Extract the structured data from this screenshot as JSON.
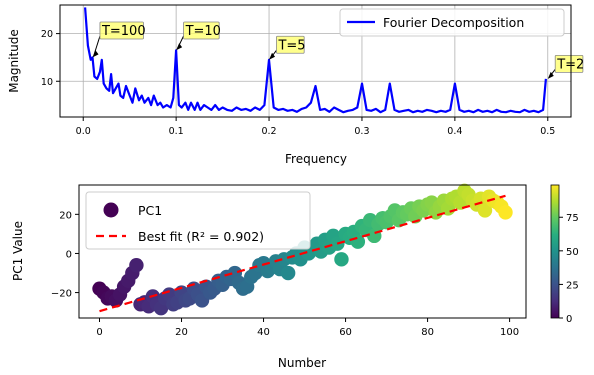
{
  "chart_data": [
    {
      "type": "line",
      "xlabel": "Frequency",
      "ylabel": "Magnitude",
      "xlim": [
        -0.025,
        0.525
      ],
      "ylim": [
        2.5,
        26
      ],
      "xticks": [
        0.0,
        0.1,
        0.2,
        0.3,
        0.4,
        0.5
      ],
      "xtick_labels": [
        "0.0",
        "0.1",
        "0.2",
        "0.3",
        "0.4",
        "0.5"
      ],
      "yticks": [
        10,
        20
      ],
      "ytick_labels": [
        "10",
        "20"
      ],
      "grid": true,
      "legend": "top-right",
      "series": [
        {
          "name": "Fourier Decomposition",
          "color": "#0000ff",
          "x": [
            0.002,
            0.005,
            0.008,
            0.01,
            0.012,
            0.015,
            0.018,
            0.02,
            0.022,
            0.025,
            0.028,
            0.03,
            0.032,
            0.035,
            0.038,
            0.04,
            0.043,
            0.046,
            0.05,
            0.053,
            0.056,
            0.06,
            0.063,
            0.066,
            0.07,
            0.073,
            0.076,
            0.08,
            0.083,
            0.086,
            0.09,
            0.094,
            0.097,
            0.1,
            0.103,
            0.106,
            0.11,
            0.113,
            0.116,
            0.12,
            0.123,
            0.126,
            0.13,
            0.134,
            0.138,
            0.142,
            0.146,
            0.15,
            0.155,
            0.16,
            0.165,
            0.17,
            0.175,
            0.18,
            0.185,
            0.19,
            0.195,
            0.2,
            0.205,
            0.21,
            0.215,
            0.22,
            0.225,
            0.23,
            0.235,
            0.24,
            0.245,
            0.25,
            0.255,
            0.26,
            0.265,
            0.27,
            0.275,
            0.28,
            0.285,
            0.29,
            0.295,
            0.3,
            0.305,
            0.31,
            0.315,
            0.32,
            0.325,
            0.33,
            0.335,
            0.34,
            0.345,
            0.35,
            0.355,
            0.36,
            0.365,
            0.37,
            0.375,
            0.38,
            0.385,
            0.39,
            0.395,
            0.4,
            0.405,
            0.41,
            0.415,
            0.42,
            0.425,
            0.43,
            0.435,
            0.44,
            0.445,
            0.45,
            0.455,
            0.46,
            0.465,
            0.47,
            0.475,
            0.48,
            0.485,
            0.49,
            0.495,
            0.498
          ],
          "values": [
            25.5,
            17.5,
            14.5,
            15.0,
            11.0,
            10.5,
            12.0,
            14.5,
            9.5,
            8.5,
            8.0,
            11.5,
            7.5,
            8.5,
            9.5,
            7.0,
            6.5,
            9.0,
            7.0,
            5.5,
            8.5,
            6.0,
            7.0,
            5.5,
            6.5,
            5.0,
            7.0,
            5.0,
            5.5,
            4.5,
            5.0,
            4.5,
            6.5,
            16.5,
            5.0,
            4.5,
            5.5,
            4.0,
            5.5,
            4.0,
            5.5,
            4.0,
            5.0,
            4.5,
            4.0,
            5.0,
            4.0,
            4.5,
            4.0,
            3.8,
            4.5,
            4.0,
            4.2,
            3.8,
            4.5,
            4.0,
            5.0,
            14.5,
            4.5,
            4.0,
            4.2,
            3.8,
            4.0,
            3.6,
            4.2,
            4.5,
            5.5,
            9.0,
            4.0,
            4.2,
            3.6,
            4.5,
            4.0,
            3.5,
            3.8,
            4.0,
            4.5,
            9.5,
            4.0,
            3.8,
            4.2,
            3.5,
            4.0,
            9.5,
            4.0,
            3.6,
            3.8,
            4.0,
            3.5,
            3.8,
            3.6,
            4.0,
            3.8,
            3.5,
            3.8,
            3.6,
            4.0,
            9.5,
            4.0,
            3.6,
            3.8,
            3.5,
            4.0,
            3.6,
            3.8,
            3.5,
            4.0,
            3.6,
            3.5,
            3.8,
            3.6,
            3.5,
            4.0,
            3.6,
            3.8,
            3.5,
            4.0,
            10.5
          ]
        }
      ],
      "annotations": [
        {
          "text": "T=100",
          "x": 0.01,
          "y": 15.0,
          "text_x": 0.018,
          "text_y": 19.5
        },
        {
          "text": "T=10",
          "x": 0.1,
          "y": 16.5,
          "text_x": 0.108,
          "text_y": 19.5
        },
        {
          "text": "T=5",
          "x": 0.2,
          "y": 14.5,
          "text_x": 0.208,
          "text_y": 16.5
        },
        {
          "text": "T=2",
          "x": 0.5,
          "y": 10.5,
          "text_x": 0.508,
          "text_y": 12.5
        }
      ]
    },
    {
      "type": "scatter",
      "xlabel": "Number",
      "ylabel": "PC1 Value",
      "xlim": [
        -5,
        104
      ],
      "ylim": [
        -33,
        35
      ],
      "xticks": [
        0,
        20,
        40,
        60,
        80,
        100
      ],
      "xtick_labels": [
        "0",
        "20",
        "40",
        "60",
        "80",
        "100"
      ],
      "yticks": [
        -20,
        0,
        20
      ],
      "ytick_labels": [
        "−20",
        "0",
        "20"
      ],
      "grid": false,
      "legend": "top-left",
      "colorbar": {
        "colormap": "viridis",
        "range": [
          0,
          99
        ],
        "ticks": [
          0,
          25,
          50,
          75
        ],
        "tick_labels": [
          "0",
          "25",
          "50",
          "75"
        ]
      },
      "series": [
        {
          "name": "PC1",
          "x": [
            0,
            1,
            2,
            3,
            4,
            5,
            6,
            7,
            8,
            9,
            10,
            11,
            12,
            13,
            14,
            15,
            16,
            17,
            18,
            19,
            20,
            21,
            22,
            23,
            24,
            25,
            26,
            27,
            28,
            29,
            30,
            31,
            32,
            33,
            34,
            35,
            36,
            37,
            38,
            39,
            40,
            41,
            42,
            43,
            44,
            45,
            46,
            47,
            48,
            49,
            50,
            51,
            52,
            53,
            54,
            55,
            56,
            57,
            58,
            59,
            60,
            61,
            62,
            63,
            64,
            65,
            66,
            67,
            68,
            69,
            70,
            71,
            72,
            73,
            74,
            75,
            76,
            77,
            78,
            79,
            80,
            81,
            82,
            83,
            84,
            85,
            86,
            87,
            88,
            89,
            90,
            91,
            92,
            93,
            94,
            95,
            96,
            97,
            98,
            99
          ],
          "values": [
            -18,
            -20,
            -23,
            -22,
            -24,
            -21,
            -17,
            -14,
            -10,
            -6,
            -26,
            -25,
            -27,
            -22,
            -26,
            -28,
            -23,
            -21,
            -26,
            -25,
            -20,
            -24,
            -23,
            -18,
            -21,
            -24,
            -17,
            -20,
            -18,
            -14,
            -16,
            -12,
            -13,
            -10,
            -15,
            -18,
            -17,
            -12,
            -10,
            -6,
            -5,
            -9,
            -7,
            -4,
            -8,
            -3,
            -10,
            -2,
            0,
            -3,
            3,
            0,
            2,
            5,
            1,
            7,
            3,
            9,
            5,
            -3,
            10,
            8,
            11,
            6,
            14,
            12,
            17,
            9,
            15,
            18,
            16,
            19,
            22,
            17,
            21,
            20,
            23,
            19,
            24,
            22,
            25,
            26,
            21,
            24,
            27,
            23,
            28,
            29,
            26,
            32,
            30,
            27,
            25,
            28,
            22,
            29,
            27,
            26,
            24,
            21
          ]
        },
        {
          "name": "Best fit (R² = 0.902)",
          "color": "#ff0000",
          "style": "dashed",
          "x": [
            0,
            99
          ],
          "values": [
            -29.5,
            29.5
          ]
        }
      ]
    }
  ]
}
